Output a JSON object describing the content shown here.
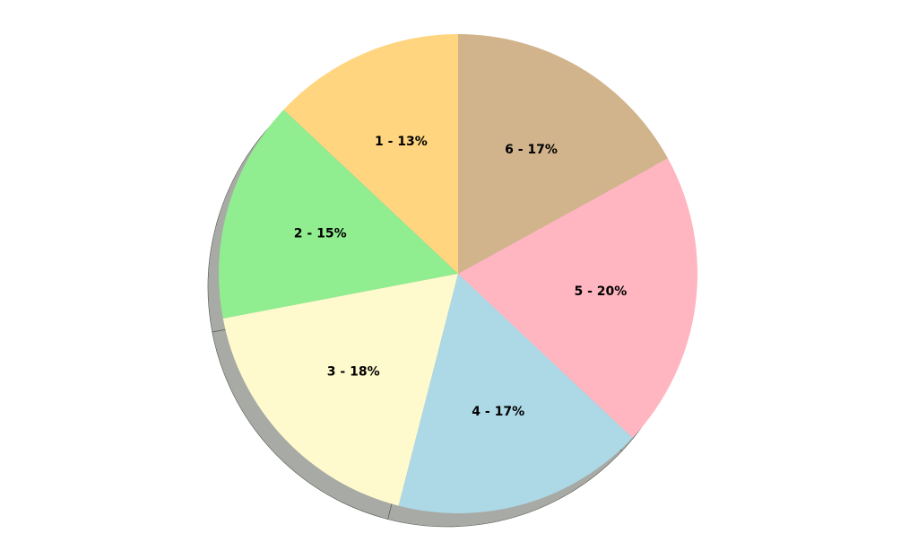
{
  "chart_data": {
    "type": "pie",
    "title": "",
    "shadow": true,
    "start": "top",
    "direction": "counterclockwise",
    "slices": [
      {
        "label": "1 - 13%",
        "value": 13,
        "color": "#FFD580"
      },
      {
        "label": "2 - 15%",
        "value": 15,
        "color": "#90EE90"
      },
      {
        "label": "3 - 18%",
        "value": 18,
        "color": "#FFFACD"
      },
      {
        "label": "4 - 17%",
        "value": 17,
        "color": "#ADD8E6"
      },
      {
        "label": "5 - 20%",
        "value": 20,
        "color": "#FFB6C1"
      },
      {
        "label": "6 - 17%",
        "value": 17,
        "color": "#D2B48C"
      }
    ]
  }
}
